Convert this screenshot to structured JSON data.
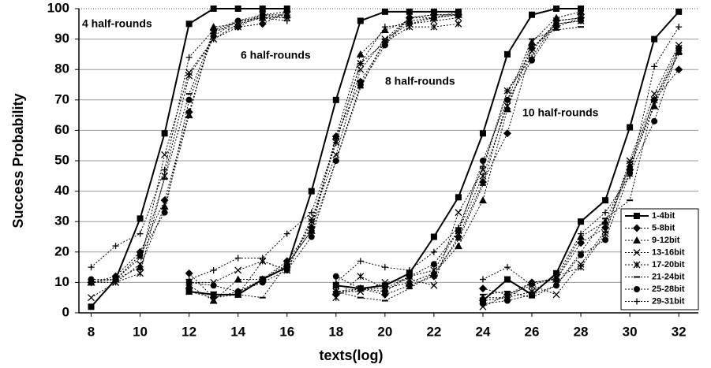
{
  "chart_data": {
    "type": "line",
    "x_label": "texts(log)",
    "y_label": "Success Probability",
    "annotations": [
      "4 half-rounds",
      "6 half-rounds",
      "8 half-rounds",
      "10 half-rounds"
    ],
    "xlim": [
      7.5,
      32.8
    ],
    "ylim": [
      0,
      100
    ],
    "xticks": [
      8,
      10,
      12,
      14,
      16,
      18,
      20,
      22,
      24,
      26,
      28,
      30,
      32
    ],
    "yticks": [
      0,
      10,
      20,
      30,
      40,
      50,
      60,
      70,
      80,
      90,
      100
    ],
    "grid": true,
    "legend": "lower right",
    "x": [
      8,
      9,
      10,
      11,
      12,
      13,
      14,
      15,
      16,
      null,
      12,
      13,
      14,
      15,
      16,
      17,
      18,
      19,
      20,
      21,
      22,
      23,
      null,
      18,
      19,
      20,
      21,
      22,
      23,
      24,
      25,
      26,
      27,
      28,
      null,
      24,
      25,
      26,
      27,
      28,
      29,
      30,
      31,
      32
    ],
    "series": [
      {
        "name": "1-4bit",
        "color": "#000000",
        "marker": "square",
        "dash": false,
        "values": [
          2,
          11,
          31,
          59,
          95,
          100,
          100,
          100,
          100,
          null,
          7,
          6,
          6,
          11,
          15,
          40,
          70,
          96,
          99,
          99,
          99,
          99,
          null,
          9,
          8,
          9,
          13,
          25,
          38,
          59,
          85,
          98,
          100,
          100,
          null,
          4,
          11,
          6,
          13,
          30,
          37,
          61,
          90,
          99
        ]
      },
      {
        "name": "5-8bit",
        "color": "#000000",
        "marker": "diamond",
        "dash": true,
        "values": [
          10,
          12,
          20,
          37,
          66,
          93,
          94,
          95,
          99,
          null,
          13,
          5,
          7,
          11,
          17,
          28,
          58,
          76,
          89,
          97,
          98,
          98,
          null,
          6,
          8,
          6,
          9,
          12,
          25,
          43,
          59,
          87,
          94,
          97,
          null,
          8,
          6,
          10,
          11,
          23,
          28,
          47,
          70,
          80
        ]
      },
      {
        "name": "9-12bit",
        "color": "#000000",
        "marker": "triangle",
        "dash": true,
        "values": [
          10,
          11,
          15,
          35,
          65,
          94,
          95,
          97,
          98,
          null,
          9,
          4,
          11,
          11,
          16,
          27,
          58,
          85,
          93,
          96,
          97,
          98,
          null,
          7,
          8,
          8,
          10,
          13,
          22,
          37,
          67,
          89,
          97,
          99,
          null,
          5,
          5,
          10,
          11,
          25,
          30,
          48,
          68,
          86
        ]
      },
      {
        "name": "13-16bit",
        "color": "#000000",
        "marker": "x",
        "dash": true,
        "values": [
          5,
          10,
          16,
          52,
          79,
          90,
          94,
          98,
          98,
          null,
          10,
          10,
          14,
          17,
          14,
          31,
          52,
          80,
          90,
          95,
          96,
          97,
          null,
          7,
          7,
          10,
          11,
          9,
          33,
          47,
          73,
          86,
          96,
          97,
          null,
          2,
          6,
          9,
          6,
          16,
          27,
          50,
          72,
          88
        ]
      },
      {
        "name": "17-20bit",
        "color": "#000000",
        "marker": "asterisk",
        "dash": true,
        "values": [
          10,
          10,
          13,
          45,
          78,
          90,
          95,
          98,
          97,
          null,
          7,
          6,
          6,
          17,
          14,
          30,
          56,
          82,
          89,
          94,
          94,
          95,
          null,
          5,
          12,
          8,
          12,
          14,
          27,
          45,
          68,
          87,
          95,
          96,
          null,
          4,
          5,
          7,
          12,
          15,
          26,
          49,
          70,
          87
        ]
      },
      {
        "name": "21-24bit",
        "color": "#000000",
        "marker": "dash",
        "dash": true,
        "values": [
          10,
          11,
          18,
          44,
          72,
          92,
          96,
          97,
          97,
          null,
          7,
          5,
          6,
          5,
          16,
          27,
          50,
          74,
          90,
          97,
          98,
          98,
          null,
          7,
          5,
          4,
          8,
          13,
          24,
          42,
          70,
          90,
          93,
          94,
          null,
          6,
          7,
          5,
          9,
          20,
          31,
          37,
          70,
          85
        ]
      },
      {
        "name": "25-28bit",
        "color": "#000000",
        "marker": "circle",
        "dash": true,
        "values": [
          11,
          11,
          19,
          33,
          70,
          91,
          96,
          98,
          99,
          null,
          10,
          9,
          7,
          10,
          14,
          25,
          50,
          75,
          88,
          97,
          97,
          98,
          null,
          12,
          8,
          7,
          12,
          16,
          27,
          50,
          70,
          83,
          95,
          96,
          null,
          3,
          4,
          6,
          9,
          19,
          24,
          46,
          63,
          87
        ]
      },
      {
        "name": "29-31bit",
        "color": "#000000",
        "marker": "plus",
        "dash": true,
        "values": [
          15,
          22,
          26,
          47,
          84,
          93,
          96,
          97,
          96,
          null,
          11,
          14,
          18,
          18,
          26,
          33,
          56,
          82,
          94,
          95,
          97,
          99,
          null,
          10,
          17,
          15,
          14,
          20,
          28,
          48,
          73,
          84,
          96,
          97,
          null,
          11,
          15,
          9,
          12,
          26,
          33,
          45,
          81,
          94
        ]
      }
    ]
  }
}
